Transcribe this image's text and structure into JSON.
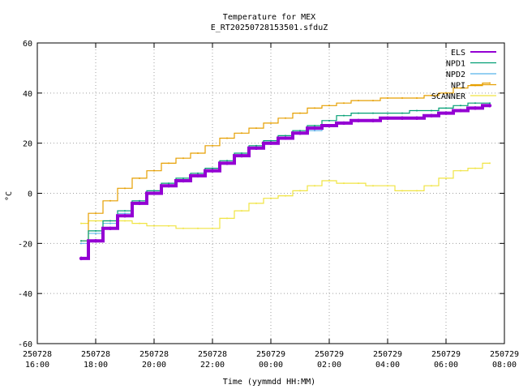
{
  "chart_data": {
    "type": "line",
    "title": "Temperature for MEX",
    "subtitle": "E_RT20250728153501.sfduZ",
    "xlabel": "Time (yymmdd HH:MM)",
    "ylabel": "°C",
    "ylim": [
      -60,
      60
    ],
    "yticks": [
      -60,
      -40,
      -20,
      0,
      20,
      40,
      60
    ],
    "xlim_hours": [
      16,
      32
    ],
    "xticks": [
      {
        "date": "250728",
        "time": "16:00"
      },
      {
        "date": "250728",
        "time": "18:00"
      },
      {
        "date": "250728",
        "time": "20:00"
      },
      {
        "date": "250728",
        "time": "22:00"
      },
      {
        "date": "250729",
        "time": "00:00"
      },
      {
        "date": "250729",
        "time": "02:00"
      },
      {
        "date": "250729",
        "time": "04:00"
      },
      {
        "date": "250729",
        "time": "06:00"
      },
      {
        "date": "250729",
        "time": "08:00"
      }
    ],
    "grid": true,
    "legend_position": "top-right",
    "series": [
      {
        "name": "ELS",
        "color": "#9400d3",
        "x": [
          "250728 17:30",
          "250728 18:00",
          "250728 18:30",
          "250728 19:00",
          "250728 19:30",
          "250728 20:00",
          "250728 20:30",
          "250728 21:00",
          "250728 21:30",
          "250728 22:00",
          "250728 22:30",
          "250728 23:00",
          "250728 23:30",
          "250729 00:00",
          "250729 00:30",
          "250729 01:00",
          "250729 01:30",
          "250729 02:00",
          "250729 02:30",
          "250729 03:00",
          "250729 03:30",
          "250729 04:00",
          "250729 04:30",
          "250729 05:00",
          "250729 05:30",
          "250729 06:00",
          "250729 06:30",
          "250729 07:00",
          "250729 07:30"
        ],
        "y": [
          -26,
          -19,
          -14,
          -9,
          -4,
          0,
          3,
          5,
          7,
          9,
          12,
          15,
          18,
          20,
          22,
          24,
          26,
          27,
          28,
          29,
          29,
          30,
          30,
          30,
          31,
          32,
          33,
          34,
          35
        ]
      },
      {
        "name": "NPD1",
        "color": "#009e73",
        "x": [
          "250728 17:30",
          "250728 18:00",
          "250728 18:30",
          "250728 19:00",
          "250728 19:30",
          "250728 20:00",
          "250728 20:30",
          "250728 21:00",
          "250728 21:30",
          "250728 22:00",
          "250728 22:30",
          "250728 23:00",
          "250728 23:30",
          "250729 00:00",
          "250729 00:30",
          "250729 01:00",
          "250729 01:30",
          "250729 02:00",
          "250729 02:30",
          "250729 03:00",
          "250729 03:30",
          "250729 04:00",
          "250729 04:30",
          "250729 05:00",
          "250729 05:30",
          "250729 06:00",
          "250729 06:30",
          "250729 07:00",
          "250729 07:30"
        ],
        "y": [
          -19,
          -15,
          -11,
          -7,
          -3,
          1,
          4,
          6,
          8,
          10,
          13,
          16,
          19,
          21,
          23,
          25,
          27,
          29,
          31,
          32,
          32,
          32,
          32,
          33,
          33,
          34,
          35,
          36,
          36
        ]
      },
      {
        "name": "NPD2",
        "color": "#56b4e9",
        "x": [
          "250728 17:30",
          "250728 18:00",
          "250728 18:30",
          "250728 19:00",
          "250728 19:30",
          "250728 20:00",
          "250728 20:30",
          "250728 21:00",
          "250728 21:30",
          "250728 22:00",
          "250728 22:30",
          "250728 23:00",
          "250728 23:30",
          "250729 00:00",
          "250729 00:30",
          "250729 01:00",
          "250729 01:30",
          "250729 02:00",
          "250729 02:30",
          "250729 03:00",
          "250729 03:30",
          "250729 04:00",
          "250729 04:30",
          "250729 05:00",
          "250729 05:30",
          "250729 06:00",
          "250729 06:30",
          "250729 07:00",
          "250729 07:30"
        ],
        "y": [
          -20,
          -16,
          -12,
          -8,
          -4,
          0,
          3,
          5,
          7,
          9,
          12,
          15,
          18,
          20,
          22,
          24,
          25,
          27,
          28,
          29,
          29,
          30,
          30,
          30,
          31,
          32,
          33,
          34,
          35
        ]
      },
      {
        "name": "NPI",
        "color": "#e69f00",
        "x": [
          "250728 17:30",
          "250728 18:00",
          "250728 18:30",
          "250728 19:00",
          "250728 19:30",
          "250728 20:00",
          "250728 20:30",
          "250728 21:00",
          "250728 21:30",
          "250728 22:00",
          "250728 22:30",
          "250728 23:00",
          "250728 23:30",
          "250729 00:00",
          "250729 00:30",
          "250729 01:00",
          "250729 01:30",
          "250729 02:00",
          "250729 02:30",
          "250729 03:00",
          "250729 03:30",
          "250729 04:00",
          "250729 04:30",
          "250729 05:00",
          "250729 05:30",
          "250729 06:00",
          "250729 06:30",
          "250729 07:00",
          "250729 07:30"
        ],
        "y": [
          -19,
          -8,
          -3,
          2,
          6,
          9,
          12,
          14,
          16,
          19,
          22,
          24,
          26,
          28,
          30,
          32,
          34,
          35,
          36,
          37,
          37,
          38,
          38,
          38,
          39,
          40,
          42,
          43,
          44
        ]
      },
      {
        "name": "SCANNER",
        "color": "#f0e442",
        "x": [
          "250728 17:30",
          "250728 18:00",
          "250728 18:30",
          "250728 19:00",
          "250728 19:30",
          "250728 20:00",
          "250728 20:30",
          "250728 21:00",
          "250728 21:30",
          "250728 22:00",
          "250728 22:30",
          "250728 23:00",
          "250728 23:30",
          "250729 00:00",
          "250729 00:30",
          "250729 01:00",
          "250729 01:30",
          "250729 02:00",
          "250729 02:30",
          "250729 03:00",
          "250729 03:30",
          "250729 04:00",
          "250729 04:30",
          "250729 05:00",
          "250729 05:30",
          "250729 06:00",
          "250729 06:30",
          "250729 07:00",
          "250729 07:30"
        ],
        "y": [
          -12,
          -11,
          -11,
          -11,
          -12,
          -13,
          -13,
          -14,
          -14,
          -14,
          -10,
          -7,
          -4,
          -2,
          -1,
          1,
          3,
          5,
          4,
          4,
          3,
          3,
          1,
          1,
          3,
          6,
          9,
          10,
          12
        ]
      }
    ]
  }
}
